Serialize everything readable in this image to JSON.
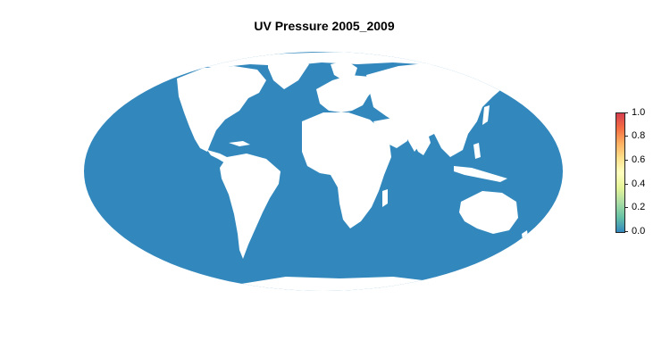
{
  "title": "UV Pressure 2005_2009",
  "colors": {
    "ocean": "#3288bd",
    "land": "#ffffff",
    "scale": [
      "#3288bd",
      "#66c2a5",
      "#abdda4",
      "#e6f598",
      "#ffffbf",
      "#fee08b",
      "#fdae61",
      "#f46d43",
      "#d53e4f"
    ]
  },
  "legend": {
    "ticks": [
      "1.0",
      "0.8",
      "0.6",
      "0.4",
      "0.2",
      "0.0"
    ]
  }
}
